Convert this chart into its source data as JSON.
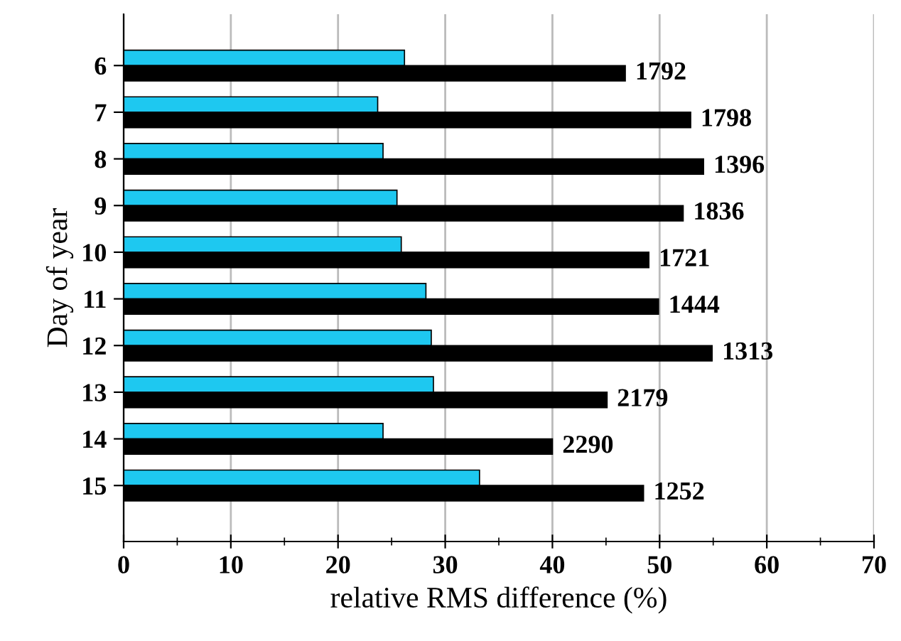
{
  "chart_data": {
    "type": "bar",
    "orientation": "horizontal",
    "xlabel": "relative RMS difference (%)",
    "ylabel": "Day of year",
    "categories": [
      "6",
      "7",
      "8",
      "9",
      "10",
      "11",
      "12",
      "13",
      "14",
      "15"
    ],
    "series": [
      {
        "color": "#1ec8f0",
        "values": [
          26.2,
          23.7,
          24.2,
          25.5,
          25.9,
          28.2,
          28.7,
          28.9,
          24.2,
          33.2
        ]
      },
      {
        "color": "#000000",
        "values": [
          46.8,
          52.9,
          54.1,
          52.2,
          49.0,
          49.9,
          54.9,
          45.1,
          40.0,
          48.5
        ]
      }
    ],
    "annotations": [
      {
        "text": "1792",
        "x": 46.8,
        "y": "6"
      },
      {
        "text": "1798",
        "x": 52.9,
        "y": "7"
      },
      {
        "text": "1396",
        "x": 54.1,
        "y": "8"
      },
      {
        "text": "1836",
        "x": 52.2,
        "y": "9"
      },
      {
        "text": "1721",
        "x": 49.0,
        "y": "10"
      },
      {
        "text": "1444",
        "x": 49.9,
        "y": "11"
      },
      {
        "text": "1313",
        "x": 54.9,
        "y": "12"
      },
      {
        "text": "2179",
        "x": 45.1,
        "y": "13"
      },
      {
        "text": "2290",
        "x": 40.0,
        "y": "14"
      },
      {
        "text": "1252",
        "x": 48.5,
        "y": "15"
      }
    ],
    "xlim": [
      0,
      70
    ],
    "xticks": [
      0,
      10,
      20,
      30,
      40,
      50,
      60,
      70
    ],
    "grid": "x"
  }
}
